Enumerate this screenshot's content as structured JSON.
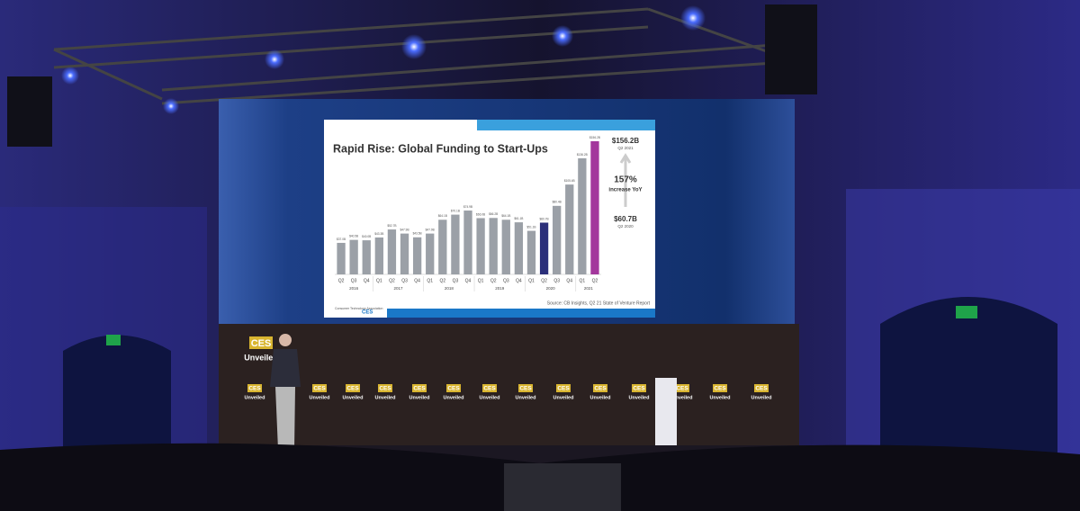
{
  "slide": {
    "title": "Rapid Rise: Global Funding to Start-Ups",
    "source": "Source: CB Insights, Q2 21 State of Venture Report",
    "logo_text": "Consumer Technology Association",
    "logo_brand": "CES",
    "annotations": {
      "top_value": "$156.2B",
      "top_period": "Q2 2021",
      "growth": "157%",
      "growth_text": "increase YoY",
      "base_value": "$60.7B",
      "base_period": "Q2 2020"
    }
  },
  "chart_data": {
    "type": "bar",
    "categories": [
      "Q2",
      "Q3",
      "Q4",
      "Q1",
      "Q2",
      "Q3",
      "Q4",
      "Q1",
      "Q2",
      "Q3",
      "Q4",
      "Q1",
      "Q2",
      "Q3",
      "Q4",
      "Q1",
      "Q2",
      "Q3",
      "Q4",
      "Q1",
      "Q2"
    ],
    "years": [
      "2016",
      "2016",
      "2016",
      "2017",
      "2017",
      "2017",
      "2017",
      "2018",
      "2018",
      "2018",
      "2018",
      "2019",
      "2019",
      "2019",
      "2019",
      "2020",
      "2020",
      "2020",
      "2020",
      "2021",
      "2021"
    ],
    "values": [
      37.0,
      40.5,
      40.0,
      43.3,
      52.7,
      47.9,
      43.5,
      47.9,
      64.1,
      70.1,
      74.9,
      66.0,
      66.2,
      64.1,
      61.1,
      51.1,
      60.7,
      80.4,
      105.4,
      136.2,
      156.2
    ],
    "value_labels": [
      "$37.0B",
      "$40.5B",
      "$40.0B",
      "$43.3B",
      "$52.7B",
      "$47.9B",
      "$43.5B",
      "$47.9B",
      "$64.1B",
      "$70.1B",
      "$74.9B",
      "$66.0B",
      "$66.2B",
      "$64.1B",
      "$61.1B",
      "$51.1B",
      "$60.7B",
      "$80.4B",
      "$105.4B",
      "$136.2B",
      "$156.2B"
    ],
    "colors": [
      "#9ba0a7",
      "#9ba0a7",
      "#9ba0a7",
      "#9ba0a7",
      "#9ba0a7",
      "#9ba0a7",
      "#9ba0a7",
      "#9ba0a7",
      "#9ba0a7",
      "#9ba0a7",
      "#9ba0a7",
      "#9ba0a7",
      "#9ba0a7",
      "#9ba0a7",
      "#9ba0a7",
      "#9ba0a7",
      "#2b2f7a",
      "#9ba0a7",
      "#9ba0a7",
      "#9ba0a7",
      "#a3379c"
    ]
  },
  "stage_sign": {
    "brand": "CES",
    "text": "Unveiled"
  }
}
